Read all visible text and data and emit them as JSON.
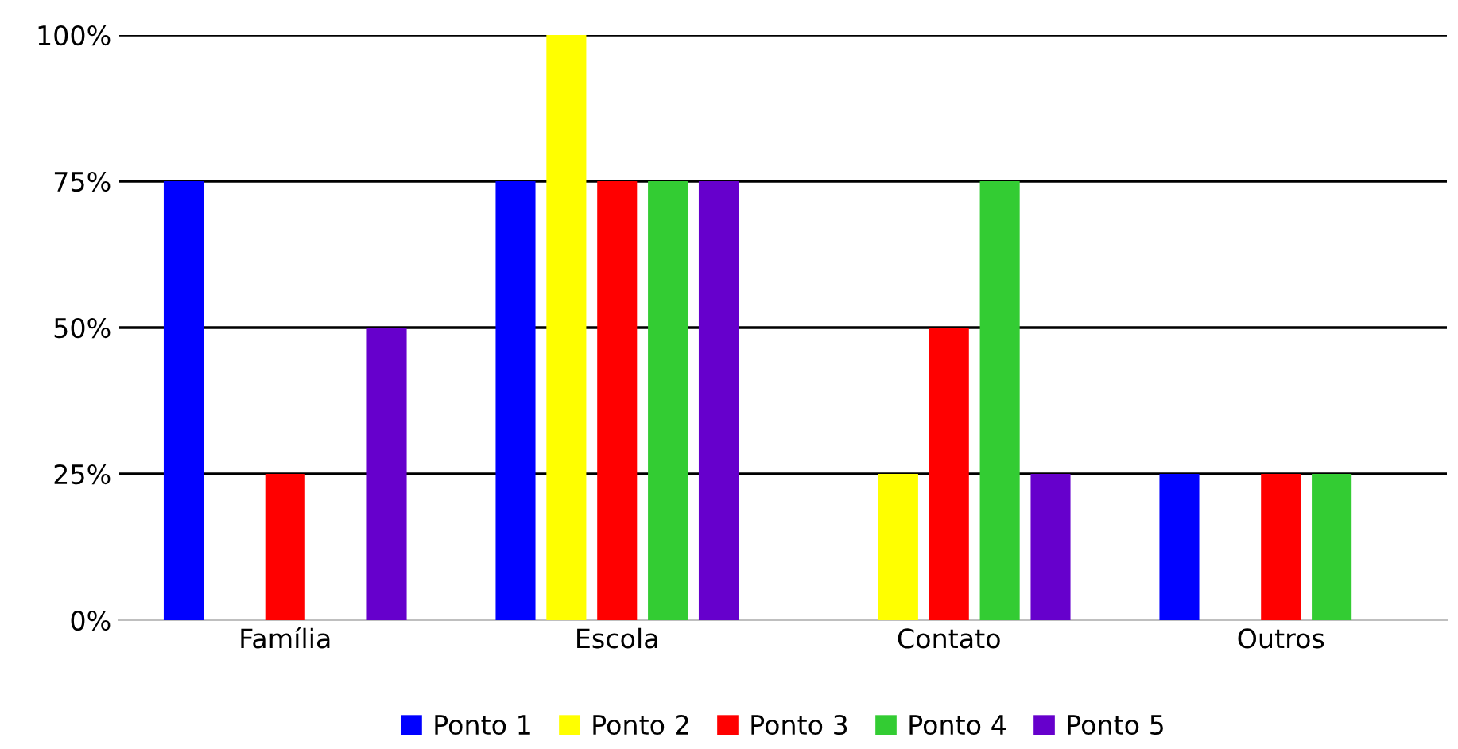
{
  "chart_data": {
    "type": "bar",
    "categories": [
      "Família",
      "Escola",
      "Contato",
      "Outros"
    ],
    "series": [
      {
        "name": "Ponto 1",
        "color": "#0000ff",
        "values": [
          75,
          75,
          0,
          25
        ]
      },
      {
        "name": "Ponto 2",
        "color": "#ffff00",
        "values": [
          0,
          100,
          25,
          0
        ]
      },
      {
        "name": "Ponto 3",
        "color": "#ff0000",
        "values": [
          25,
          75,
          50,
          25
        ]
      },
      {
        "name": "Ponto 4",
        "color": "#33cc33",
        "values": [
          0,
          75,
          75,
          25
        ]
      },
      {
        "name": "Ponto 5",
        "color": "#6600cc",
        "values": [
          50,
          75,
          25,
          0
        ]
      }
    ],
    "ylim": [
      0,
      100
    ],
    "yticks": [
      {
        "value": 0,
        "label": "0%"
      },
      {
        "value": 25,
        "label": "25%"
      },
      {
        "value": 50,
        "label": "50%"
      },
      {
        "value": 75,
        "label": "75%"
      },
      {
        "value": 100,
        "label": "100%"
      }
    ],
    "grid": "y",
    "legend": "bottom"
  }
}
